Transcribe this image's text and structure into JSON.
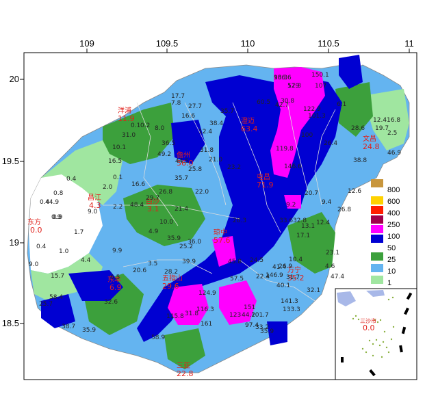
{
  "map": {
    "x_ticks": [
      "109",
      "109.5",
      "110",
      "110.5",
      "11"
    ],
    "y_ticks": [
      "20",
      "19.5",
      "19",
      "18.5"
    ]
  },
  "legend": {
    "items": [
      {
        "label": "800",
        "color": "#c8963c"
      },
      {
        "label": "600",
        "color": "#ffd200"
      },
      {
        "label": "400",
        "color": "#ff1e00"
      },
      {
        "label": "250",
        "color": "#a0004b"
      },
      {
        "label": "100",
        "color": "#ff00ff"
      },
      {
        "label": "50",
        "color": "#0000d2"
      },
      {
        "label": "25",
        "color": "#3ca03c"
      },
      {
        "label": "10",
        "color": "#64b4f0"
      },
      {
        "label": "1",
        "color": "#a0e6a0"
      }
    ]
  },
  "cities": [
    {
      "name": "洋浦",
      "value": "11.9"
    },
    {
      "name": "澄迈",
      "value": "63.4"
    },
    {
      "name": "文昌",
      "value": "24.8"
    },
    {
      "name": "儋州",
      "value": "56.0"
    },
    {
      "name": "屯昌",
      "value": "71.9"
    },
    {
      "name": "昌江",
      "value": "4.3"
    },
    {
      "name": "白沙",
      "value": "3.1"
    },
    {
      "name": "东方",
      "value": "0.0"
    },
    {
      "name": "琼中",
      "value": "57.6"
    },
    {
      "name": "万宁",
      "value": "35.2"
    },
    {
      "name": "东本",
      "value": "6.9"
    },
    {
      "name": "五指山",
      "value": "29.6"
    },
    {
      "name": "三亚",
      "value": "22.8"
    },
    {
      "name": "三沙市",
      "value": "0.0"
    }
  ],
  "stations": [
    "166.6",
    "129",
    "150.1",
    "107",
    "122.9",
    "101.3",
    "100",
    "119.8",
    "146.6",
    "17.7",
    "7.8",
    "27.7",
    "16.6",
    "35.7",
    "42.7",
    "30.8",
    "60.5",
    "6.1",
    "28.6",
    "19.7",
    "12.4",
    "16.8",
    "2.5",
    "26.4",
    "31.0",
    "8.0",
    "0.1",
    "0.2",
    "10.1",
    "16.5",
    "36.5",
    "49.2",
    "12.4",
    "31.8",
    "44.5",
    "25.8",
    "21.0",
    "23.2",
    "38.4",
    "0.4",
    "2.0",
    "0.1",
    "16.6",
    "0.8",
    "0.4",
    "44.9",
    "0.9",
    "9.0",
    "2.2",
    "29.7",
    "48.4",
    "26.8",
    "22.0",
    "35.7",
    "21.4",
    "9.2",
    "20.7",
    "9.4",
    "32.8",
    "13.1",
    "12.4",
    "0.9",
    "1.7",
    "10.0",
    "4.9",
    "35.9",
    "36.0",
    "25.2",
    "17.1",
    "10.4",
    "23.1",
    "4.6",
    "0.4",
    "1.0",
    "9.9",
    "4.4",
    "9.0",
    "15.7",
    "20.6",
    "3.5",
    "28.2",
    "39.9",
    "24.5",
    "41.4",
    "26.9",
    "31.7",
    "47.4",
    "40.1",
    "32.1",
    "25.7",
    "6.5",
    "32.6",
    "38.7",
    "35.9",
    "58.4",
    "31.8",
    "115.8",
    "116.3",
    "124.9",
    "161",
    "123",
    "151",
    "141.3",
    "133.3",
    "101.7",
    "35.9",
    "44.2",
    "58.9",
    "97.4",
    "33.2",
    "45.8",
    "57.5",
    "146.9",
    "22.4",
    "28.3",
    "33.6",
    "46.9",
    "38.8",
    "12.6",
    "26.8",
    "93.3",
    "57.8"
  ]
}
